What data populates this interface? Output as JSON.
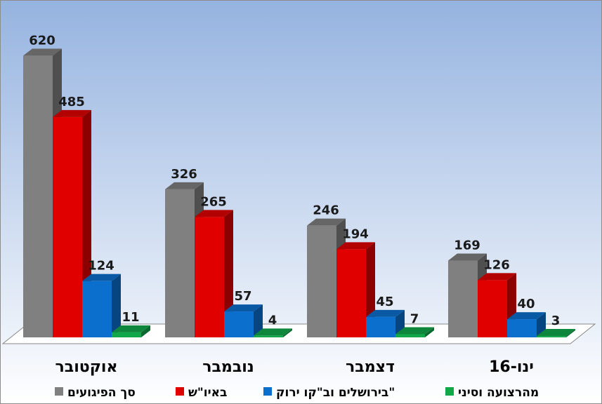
{
  "chart_data": {
    "type": "bar",
    "categories": [
      "אוקטובר",
      "נובמבר",
      "דצמבר",
      "ינו-16"
    ],
    "series": [
      {
        "name": "סך הפיגועים",
        "values": [
          620,
          326,
          246,
          169
        ],
        "color": "#808080"
      },
      {
        "name": "באיו\"ש",
        "values": [
          485,
          265,
          194,
          126
        ],
        "color": "#e00000"
      },
      {
        "name": "בירושלים וב\"קו ירוק\"",
        "values": [
          124,
          57,
          45,
          40
        ],
        "color": "#0b6fce"
      },
      {
        "name": "מהרצועה וסיני",
        "values": [
          11,
          4,
          7,
          3
        ],
        "color": "#11a84a"
      }
    ],
    "ylim": [
      0,
      650
    ],
    "grid": false,
    "legend_position": "bottom",
    "style": "3d-clustered-column",
    "background_gradient": [
      "#95b3e0",
      "#ffffff"
    ]
  }
}
